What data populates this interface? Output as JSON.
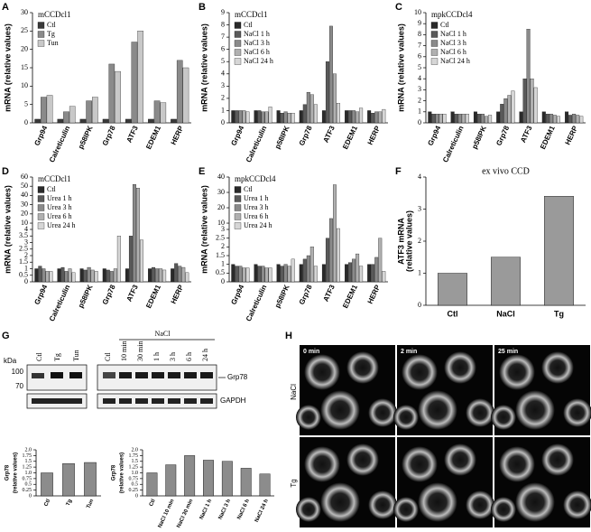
{
  "chart_data": [
    {
      "type": "bar",
      "panel": "A",
      "title": "mCCDcl1",
      "ylabel": [
        "mRNA (relative values)"
      ],
      "categories": [
        "Grp94",
        "Calreticulin",
        "p58IPK",
        "Grp78",
        "ATF3",
        "EDEM1",
        "HERP"
      ],
      "series": [
        {
          "name": "Ctl",
          "color": "#3a3a3a",
          "values": [
            1,
            1,
            1,
            1,
            1,
            1,
            1
          ]
        },
        {
          "name": "Tg",
          "color": "#8a8a8a",
          "values": [
            7,
            3,
            6,
            16,
            22,
            6,
            17
          ]
        },
        {
          "name": "Tun",
          "color": "#c8c8c8",
          "values": [
            7.5,
            4.5,
            7,
            14,
            25,
            5.5,
            15
          ]
        }
      ],
      "ylim": [
        0,
        30
      ],
      "yticks": [
        0,
        5,
        10,
        15,
        20,
        25,
        30
      ]
    },
    {
      "type": "bar",
      "panel": "B",
      "title": "mCCDcl1",
      "ylabel": [
        "mRNA (relative values)"
      ],
      "categories": [
        "Grp94",
        "Calreticulin",
        "p58IPK",
        "Grp78",
        "ATF3",
        "EDEM1",
        "HERP"
      ],
      "series": [
        {
          "name": "Ctl",
          "color": "#2a2a2a",
          "values": [
            1,
            1,
            1,
            1,
            1,
            1,
            1
          ]
        },
        {
          "name": "NaCl 1 h",
          "color": "#5a5a5a",
          "values": [
            1,
            1,
            0.8,
            1.5,
            5,
            1,
            0.8
          ]
        },
        {
          "name": "NaCl 3 h",
          "color": "#8a8a8a",
          "values": [
            1,
            0.9,
            0.9,
            2.5,
            7.9,
            1,
            0.9
          ]
        },
        {
          "name": "NaCl 6 h",
          "color": "#b0b0b0",
          "values": [
            1,
            0.9,
            0.8,
            2.3,
            4,
            0.9,
            0.9
          ]
        },
        {
          "name": "NaCl 24 h",
          "color": "#d6d6d6",
          "values": [
            0.9,
            1.3,
            0.8,
            1.5,
            1.6,
            1.2,
            1.1
          ]
        }
      ],
      "ylim": [
        0,
        9
      ],
      "yticks": [
        0,
        1,
        2,
        3,
        4,
        5,
        6,
        7,
        8,
        9
      ]
    },
    {
      "type": "bar",
      "panel": "C",
      "title": "mpkCCDcl4",
      "ylabel": [
        "mRNA (relative values)"
      ],
      "categories": [
        "Grp94",
        "Calreticulin",
        "p58IPK",
        "Grp78",
        "ATF3",
        "EDEM1",
        "HERP"
      ],
      "series": [
        {
          "name": "Ctl",
          "color": "#2a2a2a",
          "values": [
            1,
            1,
            1,
            1,
            1,
            1,
            1
          ]
        },
        {
          "name": "NaCl 1 h",
          "color": "#5a5a5a",
          "values": [
            0.8,
            0.8,
            0.8,
            1.7,
            4,
            0.8,
            0.7
          ]
        },
        {
          "name": "NaCl 3 h",
          "color": "#8a8a8a",
          "values": [
            0.8,
            0.8,
            0.8,
            2.2,
            8.5,
            0.8,
            0.8
          ]
        },
        {
          "name": "NaCl 6 h",
          "color": "#b0b0b0",
          "values": [
            0.8,
            0.8,
            0.6,
            2.5,
            4,
            0.7,
            0.7
          ]
        },
        {
          "name": "NaCl 24 h",
          "color": "#d6d6d6",
          "values": [
            0.8,
            0.8,
            0.7,
            2.9,
            3.2,
            0.6,
            0.6
          ]
        }
      ],
      "ylim": [
        0,
        10
      ],
      "yticks": [
        0,
        1,
        2,
        3,
        4,
        5,
        6,
        7,
        8,
        9,
        10
      ]
    },
    {
      "type": "bar",
      "panel": "D",
      "title": "mCCDcl1",
      "ylabel": [
        "mRNA (relative values)"
      ],
      "categories": [
        "Grp94",
        "Calreticulin",
        "p58IPK",
        "Grp78",
        "ATF3",
        "EDEM1",
        "HERP"
      ],
      "series": [
        {
          "name": "Ctl",
          "color": "#2a2a2a",
          "values": [
            1,
            1,
            1,
            1,
            1,
            1,
            1
          ]
        },
        {
          "name": "Urea 1 h",
          "color": "#5a5a5a",
          "values": [
            1.2,
            1.1,
            0.9,
            0.9,
            3.5,
            1.1,
            1.4
          ]
        },
        {
          "name": "Urea 3 h",
          "color": "#8a8a8a",
          "values": [
            1,
            0.8,
            1.1,
            0.8,
            52,
            1,
            1.2
          ]
        },
        {
          "name": "Urea 6 h",
          "color": "#b0b0b0",
          "values": [
            0.8,
            1,
            0.9,
            1,
            48,
            1,
            1.1
          ]
        },
        {
          "name": "Urea 24 h",
          "color": "#d6d6d6",
          "values": [
            0.8,
            0.7,
            0.8,
            3.5,
            3.2,
            0.9,
            0.7
          ]
        }
      ],
      "ylim": [
        0,
        60
      ],
      "ybreak": [
        4,
        10
      ],
      "yticks": [
        0,
        0.5,
        1,
        1.5,
        2,
        2.5,
        3,
        3.5,
        4,
        10,
        20,
        30,
        40,
        50,
        60
      ]
    },
    {
      "type": "bar",
      "panel": "E",
      "title": "mpkCCDcl4",
      "ylabel": [
        "mRNA (relative values)"
      ],
      "categories": [
        "Grp94",
        "Calreticulin",
        "p58IPK",
        "Grp78",
        "ATF3",
        "EDEM1",
        "HERP"
      ],
      "series": [
        {
          "name": "Ctl",
          "color": "#2a2a2a",
          "values": [
            1,
            1,
            1,
            1,
            1,
            1,
            1
          ]
        },
        {
          "name": "Urea 1 h",
          "color": "#5a5a5a",
          "values": [
            0.9,
            0.9,
            0.9,
            1.3,
            2.5,
            1.1,
            1
          ]
        },
        {
          "name": "Urea 3 h",
          "color": "#8a8a8a",
          "values": [
            0.9,
            0.9,
            1,
            1.5,
            13,
            1.3,
            1.4
          ]
        },
        {
          "name": "Urea 6 h",
          "color": "#b0b0b0",
          "values": [
            0.8,
            0.8,
            0.9,
            2,
            35,
            1.6,
            2.5
          ]
        },
        {
          "name": "Urea 24 h",
          "color": "#d6d6d6",
          "values": [
            0.8,
            0.8,
            1.3,
            0.9,
            4,
            0.9,
            0.6
          ]
        }
      ],
      "ylim": [
        0,
        40
      ],
      "ybreak": [
        3,
        10
      ],
      "yticks": [
        0,
        0.5,
        1,
        1.5,
        2,
        2.5,
        3,
        10,
        20,
        30,
        40
      ]
    },
    {
      "type": "bar",
      "panel": "F",
      "title": "ex vivo CCD",
      "ylabel": [
        "ATF3 mRNA",
        "(relative values)"
      ],
      "categories": [
        "Ctl",
        "NaCl",
        "Tg"
      ],
      "values": [
        1,
        1.5,
        3.4
      ],
      "color": "#9a9a9a",
      "ylim": [
        0,
        4
      ],
      "yticks": [
        0,
        1,
        2,
        3,
        4
      ]
    },
    {
      "type": "bar",
      "ylabel": [
        "Grp78",
        "(relative values)"
      ],
      "categories": [
        "Ctl",
        "Tg",
        "Tun"
      ],
      "values": [
        1,
        1.4,
        1.45
      ],
      "color": "#8c8c8c",
      "ylim": [
        0,
        2
      ],
      "yticks": [
        0,
        0.25,
        0.5,
        0.75,
        {
          "value": 1,
          "label": "1.0"
        },
        1.25,
        1.5,
        1.75,
        {
          "value": 2,
          "label": "2.0"
        }
      ]
    },
    {
      "type": "bar",
      "ylabel": [
        "Grp78",
        "(relative values)"
      ],
      "categories": [
        "Ctl",
        "NaCl 10 min",
        "NaCl 30 min",
        "NaCl 1 h",
        "NaCl 3 h",
        "NaCl 6 h",
        "NaCl 24 h"
      ],
      "values": [
        1,
        1.35,
        1.75,
        1.55,
        1.5,
        1.2,
        0.95
      ],
      "color": "#8c8c8c",
      "ylim": [
        0,
        2
      ],
      "yticks": [
        0,
        0.25,
        0.5,
        0.75,
        {
          "value": 1,
          "label": "1.0"
        },
        1.25,
        1.5,
        1.75,
        {
          "value": 2,
          "label": "2.0"
        }
      ]
    }
  ],
  "blot": {
    "panel": "G",
    "unit": "kDa",
    "markers": [
      "100",
      "70"
    ],
    "lanes_left": [
      "Ctl",
      "Tg",
      "Tun"
    ],
    "treatment": "NaCl",
    "lanes_right": [
      "Ctl",
      "10 min",
      "30 min",
      "1 h",
      "3 h",
      "6 h",
      "24 h"
    ],
    "bands": [
      "Grp78",
      "GAPDH"
    ]
  },
  "imaging": {
    "panel": "H",
    "columns": [
      "0 min",
      "2 min",
      "25 min"
    ],
    "rows": [
      "NaCl",
      "Tg"
    ]
  }
}
